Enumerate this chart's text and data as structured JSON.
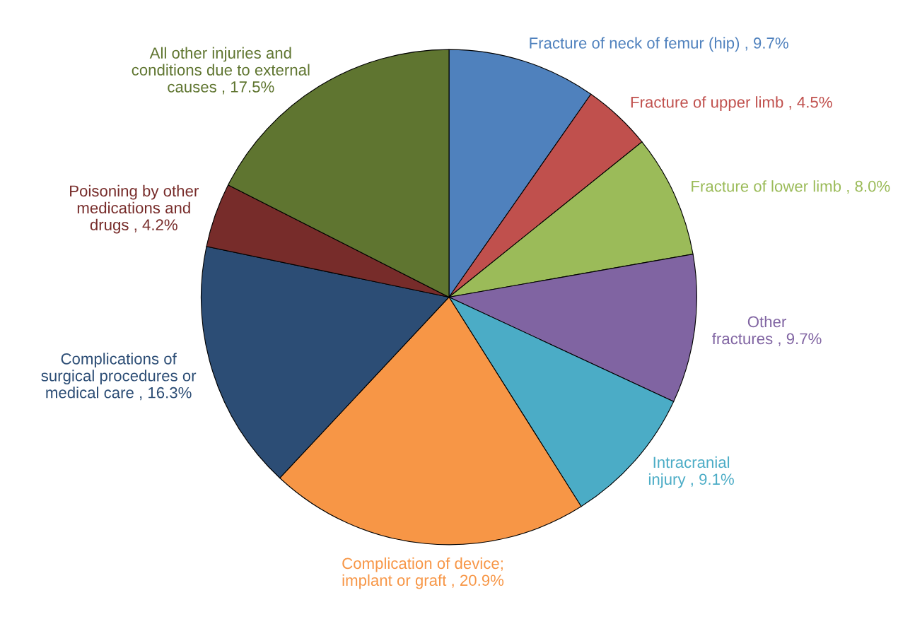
{
  "chart_data": {
    "type": "pie",
    "categories": [
      "Fracture of neck of femur (hip)",
      "Fracture of upper limb",
      "Fracture of lower limb",
      "Other\nfractures",
      "Intracranial\ninjury",
      "Complication of device;\nimplant or graft",
      "Complications of\nsurgical procedures or\nmedical care",
      "Poisoning by other\nmedications and\ndrugs",
      "All other injuries and\nconditions due to external\ncauses"
    ],
    "values": [
      9.7,
      4.5,
      8.0,
      9.7,
      9.1,
      20.9,
      16.3,
      4.2,
      17.5
    ],
    "value_labels": [
      "9.7%",
      "4.5%",
      "8.0%",
      "9.7%",
      "9.1%",
      "20.9%",
      "16.3%",
      "4.2%",
      "17.5%"
    ],
    "colors": [
      "#4f81bd",
      "#c0504d",
      "#9bbb59",
      "#8064a2",
      "#4bacc6",
      "#f79646",
      "#2c4d75",
      "#772c2a",
      "#5f7530"
    ],
    "legend": false
  }
}
